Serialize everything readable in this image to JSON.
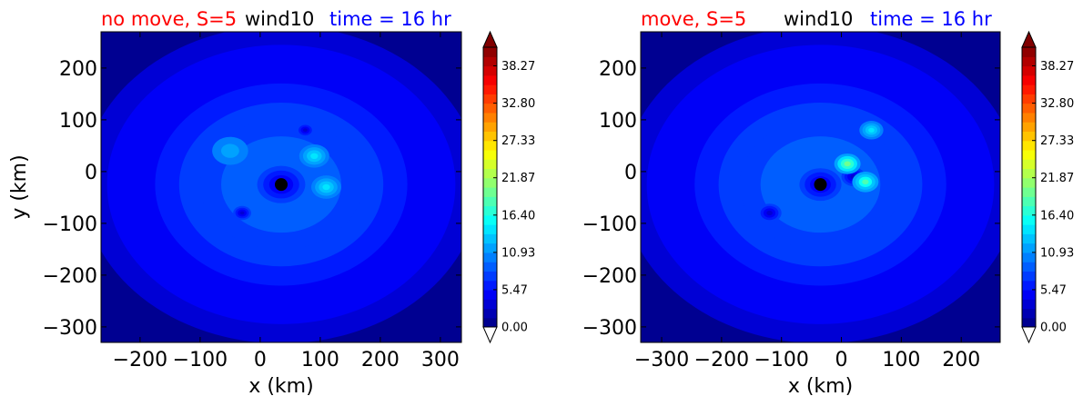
{
  "chart_data": [
    {
      "type": "heatmap",
      "title_parts": [
        {
          "text": "no move, S=5",
          "color": "#ff0000"
        },
        {
          "text": "wind10",
          "color": "#000000"
        },
        {
          "text": "time = 16 hr",
          "color": "#0000ff"
        }
      ],
      "xlabel": "x (km)",
      "ylabel": "y (km)",
      "xlim": [
        -265,
        335
      ],
      "ylim": [
        -330,
        270
      ],
      "xticks": [
        -200,
        -100,
        0,
        100,
        200,
        300
      ],
      "xtick_labels": [
        "−200",
        "−100",
        "0",
        "100",
        "200",
        "300"
      ],
      "yticks": [
        200,
        100,
        0,
        -100,
        -200,
        -300
      ],
      "ytick_labels": [
        "200",
        "100",
        "0",
        "−100",
        "−200",
        "−300"
      ],
      "center_marker": {
        "x": 35,
        "y": -25
      },
      "field_center": {
        "x": 35,
        "y": -25
      },
      "colorbar": {
        "min": 0,
        "max": 41,
        "ticks": [
          0.0,
          5.47,
          10.93,
          16.4,
          21.87,
          27.33,
          32.8,
          38.27
        ],
        "tick_labels": [
          "0.00",
          "5.47",
          "10.93",
          "16.40",
          "21.87",
          "27.33",
          "32.80",
          "38.27"
        ],
        "extend": "both"
      },
      "features": [
        {
          "x": 35,
          "y": -25,
          "value": 2.5,
          "radius": 40
        },
        {
          "x": 90,
          "y": 30,
          "value": 15,
          "radius": 25
        },
        {
          "x": 110,
          "y": -30,
          "value": 14,
          "radius": 25
        },
        {
          "x": 75,
          "y": 80,
          "value": 3,
          "radius": 15
        },
        {
          "x": -30,
          "y": -80,
          "value": 3,
          "radius": 15
        },
        {
          "x": -50,
          "y": 40,
          "value": 12,
          "radius": 30
        }
      ]
    },
    {
      "type": "heatmap",
      "title_parts": [
        {
          "text": "move, S=5",
          "color": "#ff0000"
        },
        {
          "text": "wind10",
          "color": "#000000"
        },
        {
          "text": "time = 16 hr",
          "color": "#0000ff"
        }
      ],
      "xlabel": "x (km)",
      "ylabel": "",
      "xlim": [
        -335,
        265
      ],
      "ylim": [
        -330,
        270
      ],
      "xticks": [
        -300,
        -200,
        -100,
        0,
        100,
        200
      ],
      "xtick_labels": [
        "−300",
        "−200",
        "−100",
        "0",
        "100",
        "200"
      ],
      "yticks": [
        200,
        100,
        0,
        -100,
        -200,
        -300
      ],
      "ytick_labels": [
        "200",
        "100",
        "0",
        "−100",
        "−200",
        "−300"
      ],
      "center_marker": {
        "x": -35,
        "y": -25
      },
      "field_center": {
        "x": -35,
        "y": -25
      },
      "colorbar": {
        "min": 0,
        "max": 41,
        "ticks": [
          0.0,
          5.47,
          10.93,
          16.4,
          21.87,
          27.33,
          32.8,
          38.27
        ],
        "tick_labels": [
          "0.00",
          "5.47",
          "10.93",
          "16.40",
          "21.87",
          "27.33",
          "32.80",
          "38.27"
        ],
        "extend": "both"
      },
      "features": [
        {
          "x": -35,
          "y": -25,
          "value": 2.5,
          "radius": 35
        },
        {
          "x": 20,
          "y": -10,
          "value": 3,
          "radius": 20
        },
        {
          "x": 10,
          "y": 15,
          "value": 20,
          "radius": 22
        },
        {
          "x": 40,
          "y": -20,
          "value": 18,
          "radius": 22
        },
        {
          "x": 50,
          "y": 80,
          "value": 15,
          "radius": 20
        },
        {
          "x": -120,
          "y": -80,
          "value": 3,
          "radius": 20
        }
      ]
    }
  ]
}
